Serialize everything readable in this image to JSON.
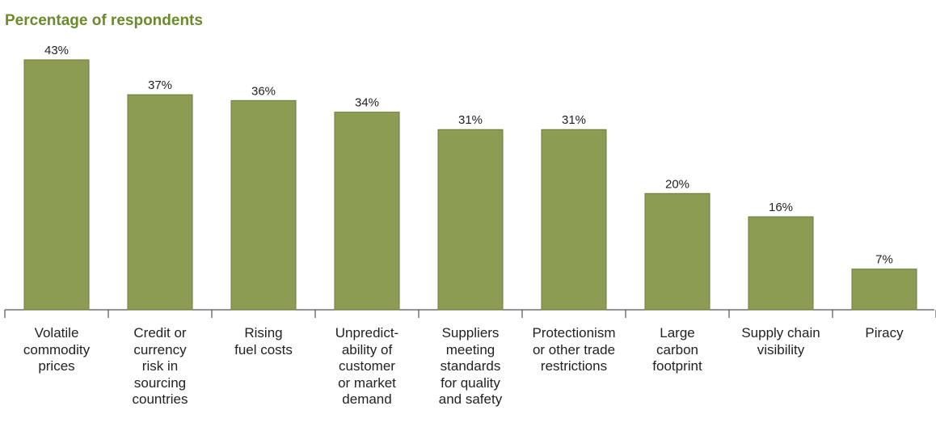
{
  "chart_data": {
    "type": "bar",
    "title": "Percentage of respondents",
    "categories": [
      "Volatile\ncommodity\nprices",
      "Credit or\ncurrency\nrisk in\nsourcing\ncountries",
      "Rising\nfuel costs",
      "Unpredict-\nability of\ncustomer\nor market\ndemand",
      "Suppliers\nmeeting\nstandards\nfor quality\nand safety",
      "Protectionism\nor other trade\nrestrictions",
      "Large\ncarbon\nfootprint",
      "Supply chain\nvisibility",
      "Piracy"
    ],
    "values": [
      43,
      37,
      36,
      34,
      31,
      31,
      20,
      16,
      7
    ],
    "value_labels": [
      "43%",
      "37%",
      "36%",
      "34%",
      "31%",
      "31%",
      "20%",
      "16%",
      "7%"
    ],
    "color": "#8c9c53"
  }
}
